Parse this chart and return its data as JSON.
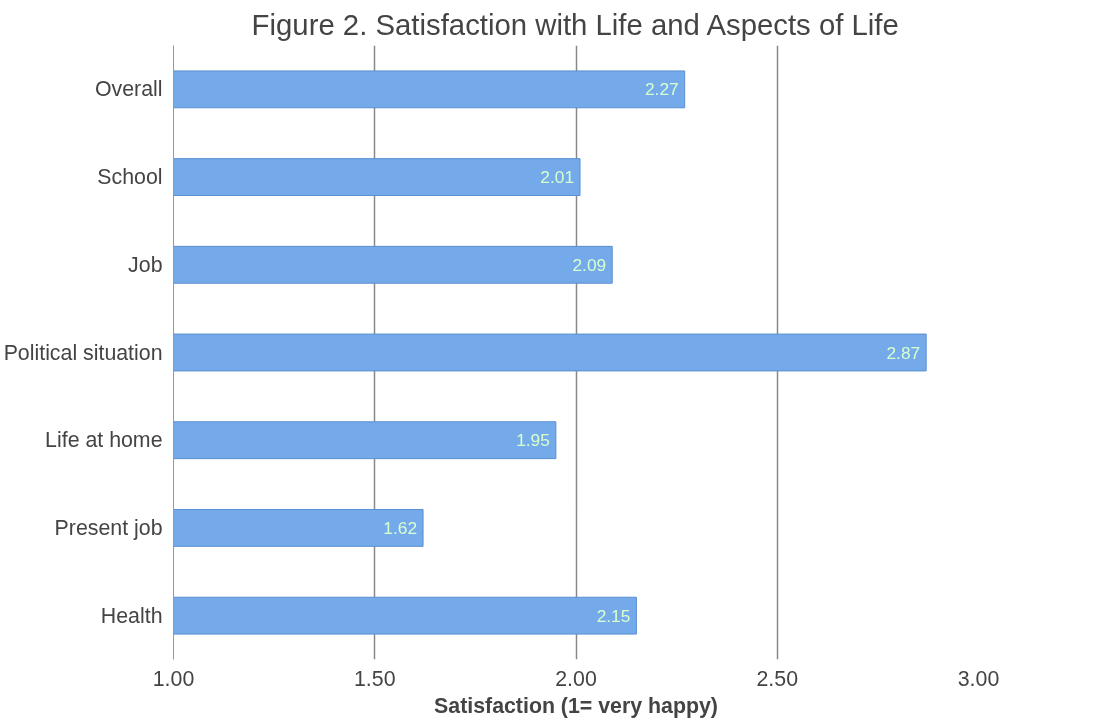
{
  "chart_data": {
    "type": "bar",
    "orientation": "horizontal",
    "title": "Figure 2. Satisfaction with Life and Aspects of Life",
    "xlabel": "Satisfaction (1= very happy)",
    "categories": [
      "Overall",
      "School",
      "Job",
      "Political situation",
      "Life at home",
      "Present job",
      "Health"
    ],
    "values": [
      2.27,
      2.01,
      2.09,
      2.87,
      1.95,
      1.62,
      2.15
    ],
    "color": "#74aaea",
    "xlim": [
      1,
      3
    ],
    "xticks": [
      {
        "value": 1,
        "label": "1.00"
      },
      {
        "value": 1.5,
        "label": "1.50"
      },
      {
        "value": 2,
        "label": "2.00"
      },
      {
        "value": 2.5,
        "label": "2.50"
      },
      {
        "value": 3,
        "label": "3.00"
      }
    ],
    "grid": "x",
    "data_labels": true
  }
}
